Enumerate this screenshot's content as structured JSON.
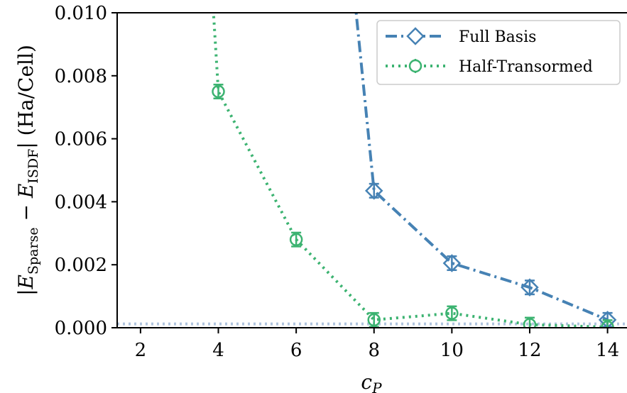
{
  "chart_data": {
    "type": "line",
    "xlabel_main": "c",
    "xlabel_sub": "P",
    "ylabel_parts": {
      "open": "|",
      "e1": "E",
      "sub1": "Sparse",
      "minus": " − ",
      "e2": "E",
      "sub2": "ISDF",
      "close": "|",
      "unit": " (Ha/Cell)"
    },
    "xlim": [
      1.4,
      14.5
    ],
    "ylim": [
      0.0,
      0.01
    ],
    "xticks": [
      2,
      4,
      6,
      8,
      10,
      12,
      14
    ],
    "xtick_labels": [
      "2",
      "4",
      "6",
      "8",
      "10",
      "12",
      "14"
    ],
    "yticks": [
      0.0,
      0.002,
      0.004,
      0.006,
      0.008,
      0.01
    ],
    "ytick_labels": [
      "0.000",
      "0.002",
      "0.004",
      "0.006",
      "0.008",
      "0.010"
    ],
    "reference_line_y": 0.00012,
    "legend_position": "top-right",
    "series": [
      {
        "name": "Full Basis",
        "color": "#4682b4",
        "linestyle": "dashdot",
        "marker": "diamond",
        "x": [
          7.5,
          8,
          10,
          12,
          14
        ],
        "y": [
          0.0105,
          0.00435,
          0.00205,
          0.00128,
          0.00025
        ],
        "err": [
          0,
          0.00022,
          0.00022,
          0.00022,
          0.00022
        ]
      },
      {
        "name": "Half-Transormed",
        "color": "#3cb371",
        "linestyle": "dotted",
        "marker": "circle",
        "x": [
          3.85,
          4,
          6,
          8,
          10,
          12,
          14
        ],
        "y": [
          0.0105,
          0.0075,
          0.0028,
          0.00025,
          0.00046,
          0.0001,
          2e-05
        ],
        "err": [
          0,
          0.00022,
          0.00022,
          0.00022,
          0.00022,
          0.00022,
          0.00022
        ]
      }
    ]
  }
}
